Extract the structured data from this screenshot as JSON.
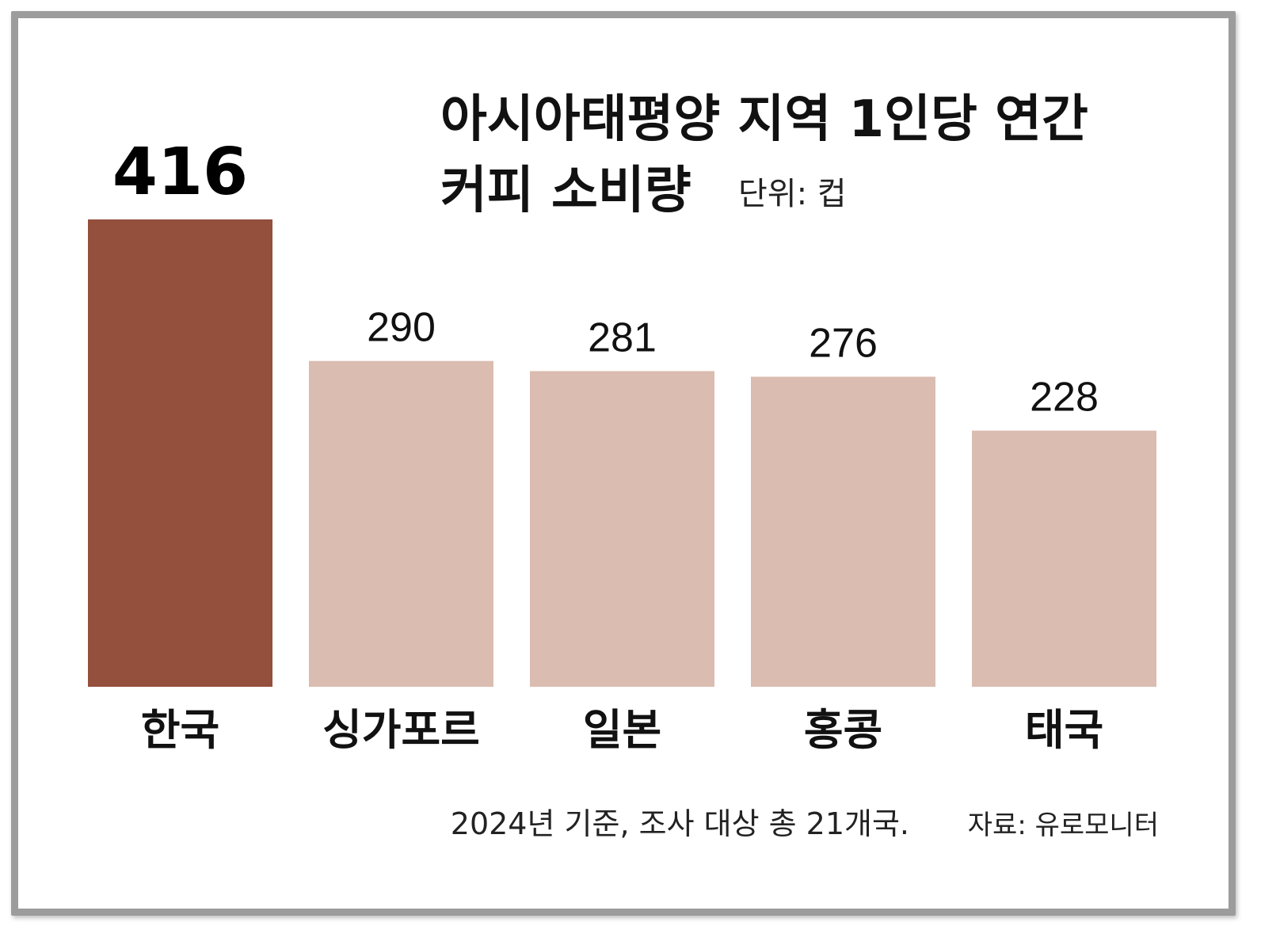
{
  "chart_data": {
    "type": "bar",
    "title_line1": "아시아태평양 지역 1인당 연간",
    "title_line2": "커피 소비량",
    "unit": "단위: 컵",
    "categories": [
      "한국",
      "싱가포르",
      "일본",
      "홍콩",
      "태국"
    ],
    "values": [
      416,
      290,
      281,
      276,
      228
    ],
    "value_labels": [
      "416",
      "290",
      "281",
      "276",
      "228"
    ],
    "highlight_index": 0,
    "ylim": [
      0,
      416
    ],
    "grid": false,
    "footnote": "2024년 기준, 조사 대상 총 21개국.",
    "source": "자료: 유로모니터"
  },
  "colors": {
    "highlight": "#944f3d",
    "normal": "#dbbcb1",
    "frame": "#9c9c9c"
  }
}
